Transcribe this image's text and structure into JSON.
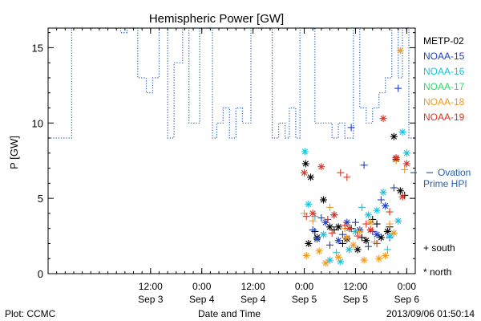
{
  "chart_data": {
    "type": "scatter",
    "title": "Hemispheric Power [GW]",
    "ylabel": "P [GW]",
    "xlabel": "Date and Time",
    "ylim": [
      0,
      16.3
    ],
    "xlim": [
      "2013-09-02 12:00",
      "2013-09-06 02:00"
    ],
    "yticks": [
      0,
      5,
      10,
      15
    ],
    "xticks": [
      {
        "t": "2013-09-03 12:00",
        "time": "12:00",
        "date": "Sep 3"
      },
      {
        "t": "2013-09-04 00:00",
        "time": "0:00",
        "date": "Sep 4"
      },
      {
        "t": "2013-09-04 12:00",
        "time": "12:00",
        "date": "Sep 4"
      },
      {
        "t": "2013-09-05 00:00",
        "time": "0:00",
        "date": "Sep 5"
      },
      {
        "t": "2013-09-05 12:00",
        "time": "12:00",
        "date": "Sep 5"
      },
      {
        "t": "2013-09-06 00:00",
        "time": "0:00",
        "date": "Sep 6"
      }
    ],
    "legend": [
      {
        "name": "METP-02",
        "color": "#000000"
      },
      {
        "name": "NOAA-15",
        "color": "#1f3fbf"
      },
      {
        "name": "NOAA-16",
        "color": "#17c3dd"
      },
      {
        "name": "NOAA-17",
        "color": "#26dd66"
      },
      {
        "name": "NOAA-18",
        "color": "#ee9a1f"
      },
      {
        "name": "NOAA-19",
        "color": "#dd3322"
      }
    ],
    "ovation": {
      "label_line1": "Ovation",
      "label_line2": "Prime HPI",
      "value": 6.7,
      "color": "#1f5fbf"
    },
    "symbols": {
      "south": "+ south",
      "north": "* north"
    },
    "step_series": {
      "color": "#1f5fbf",
      "points": [
        [
          "2013-09-02 12:00",
          9.0
        ],
        [
          "2013-09-02 17:30",
          9.0
        ],
        [
          "2013-09-02 17:30",
          16.3
        ],
        [
          "2013-09-03 05:00",
          16.3
        ],
        [
          "2013-09-03 05:00",
          16.0
        ],
        [
          "2013-09-03 06:30",
          16.0
        ],
        [
          "2013-09-03 06:30",
          16.3
        ],
        [
          "2013-09-03 09:00",
          16.3
        ],
        [
          "2013-09-03 09:00",
          13.0
        ],
        [
          "2013-09-03 11:00",
          13.0
        ],
        [
          "2013-09-03 11:00",
          12.0
        ],
        [
          "2013-09-03 12:30",
          12.0
        ],
        [
          "2013-09-03 12:30",
          13.0
        ],
        [
          "2013-09-03 14:00",
          13.0
        ],
        [
          "2013-09-03 14:00",
          16.3
        ],
        [
          "2013-09-03 16:00",
          16.3
        ],
        [
          "2013-09-03 16:00",
          9.0
        ],
        [
          "2013-09-03 17:30",
          9.0
        ],
        [
          "2013-09-03 17:30",
          14.0
        ],
        [
          "2013-09-03 19:30",
          14.0
        ],
        [
          "2013-09-03 19:30",
          16.3
        ],
        [
          "2013-09-03 21:00",
          16.3
        ],
        [
          "2013-09-03 21:00",
          10.0
        ],
        [
          "2013-09-03 23:30",
          10.0
        ],
        [
          "2013-09-03 23:30",
          16.3
        ],
        [
          "2013-09-04 02:30",
          16.3
        ],
        [
          "2013-09-04 02:30",
          9.0
        ],
        [
          "2013-09-04 03:30",
          9.0
        ],
        [
          "2013-09-04 03:30",
          10.0
        ],
        [
          "2013-09-04 05:00",
          10.0
        ],
        [
          "2013-09-04 05:00",
          11.0
        ],
        [
          "2013-09-04 06:30",
          11.0
        ],
        [
          "2013-09-04 06:30",
          9.0
        ],
        [
          "2013-09-04 08:00",
          9.0
        ],
        [
          "2013-09-04 08:00",
          11.0
        ],
        [
          "2013-09-04 09:30",
          11.0
        ],
        [
          "2013-09-04 09:30",
          10.0
        ],
        [
          "2013-09-04 11:30",
          10.0
        ],
        [
          "2013-09-04 11:30",
          16.3
        ],
        [
          "2013-09-04 16:30",
          16.3
        ],
        [
          "2013-09-04 16:30",
          9.0
        ],
        [
          "2013-09-04 18:00",
          9.0
        ],
        [
          "2013-09-04 18:00",
          10.0
        ],
        [
          "2013-09-04 19:30",
          10.0
        ],
        [
          "2013-09-04 19:30",
          9.0
        ],
        [
          "2013-09-04 20:30",
          9.0
        ],
        [
          "2013-09-04 20:30",
          11.0
        ],
        [
          "2013-09-04 22:00",
          11.0
        ],
        [
          "2013-09-04 22:00",
          9.0
        ],
        [
          "2013-09-04 23:00",
          9.0
        ],
        [
          "2013-09-04 23:00",
          16.3
        ],
        [
          "2013-09-05 02:30",
          16.3
        ],
        [
          "2013-09-05 02:30",
          10.0
        ],
        [
          "2013-09-05 06:30",
          10.0
        ],
        [
          "2013-09-05 06:30",
          9.0
        ],
        [
          "2013-09-05 08:00",
          9.0
        ],
        [
          "2013-09-05 08:00",
          10.0
        ],
        [
          "2013-09-05 09:30",
          10.0
        ],
        [
          "2013-09-05 09:30",
          9.0
        ],
        [
          "2013-09-05 11:30",
          9.0
        ],
        [
          "2013-09-05 11:30",
          16.3
        ],
        [
          "2013-09-05 13:00",
          16.3
        ],
        [
          "2013-09-05 13:00",
          11.0
        ],
        [
          "2013-09-05 14:30",
          11.0
        ],
        [
          "2013-09-05 14:30",
          10.0
        ],
        [
          "2013-09-05 16:00",
          10.0
        ],
        [
          "2013-09-05 16:00",
          11.0
        ],
        [
          "2013-09-05 17:30",
          11.0
        ],
        [
          "2013-09-05 17:30",
          12.0
        ],
        [
          "2013-09-05 19:00",
          12.0
        ],
        [
          "2013-09-05 19:00",
          13.0
        ],
        [
          "2013-09-05 20:30",
          13.0
        ],
        [
          "2013-09-05 20:30",
          16.3
        ],
        [
          "2013-09-05 22:00",
          16.3
        ],
        [
          "2013-09-05 22:00",
          13.0
        ],
        [
          "2013-09-05 23:00",
          13.0
        ],
        [
          "2013-09-05 23:00",
          16.3
        ],
        [
          "2013-09-06 00:30",
          16.3
        ],
        [
          "2013-09-06 00:30",
          9.0
        ],
        [
          "2013-09-06 02:00",
          9.0
        ]
      ]
    },
    "scatter_series": [
      {
        "name": "METP-02",
        "color": "#000000",
        "points": [
          [
            "2013-09-05 00:20",
            7.3,
            "n"
          ],
          [
            "2013-09-05 01:30",
            6.4,
            "n"
          ],
          [
            "2013-09-05 04:30",
            4.9,
            "n"
          ],
          [
            "2013-09-05 03:00",
            2.4,
            "n"
          ],
          [
            "2013-09-05 01:00",
            2.0,
            "n"
          ],
          [
            "2013-09-05 06:00",
            3.1,
            "n"
          ],
          [
            "2013-09-05 08:00",
            3.1,
            "n"
          ],
          [
            "2013-09-05 10:00",
            2.3,
            "n"
          ],
          [
            "2013-09-05 12:30",
            1.6,
            "n"
          ],
          [
            "2013-09-05 14:30",
            2.2,
            "n"
          ],
          [
            "2013-09-05 18:00",
            2.4,
            "n"
          ],
          [
            "2013-09-05 21:00",
            9.1,
            "n"
          ],
          [
            "2013-09-05 22:30",
            5.5,
            "n"
          ],
          [
            "2013-09-05 21:30",
            7.6,
            "n"
          ],
          [
            "2013-09-05 19:30",
            2.8,
            "n"
          ],
          [
            "2013-09-05 16:00",
            3.6,
            "s"
          ],
          [
            "2013-09-05 11:00",
            3.0,
            "s"
          ],
          [
            "2013-09-05 07:00",
            2.9,
            "s"
          ],
          [
            "2013-09-05 02:30",
            2.8,
            "s"
          ],
          [
            "2013-09-05 13:30",
            2.4,
            "s"
          ],
          [
            "2013-09-05 17:00",
            3.3,
            "s"
          ],
          [
            "2013-09-05 09:00",
            2.0,
            "s"
          ],
          [
            "2013-09-05 23:30",
            5.2,
            "s"
          ],
          [
            "2013-09-05 20:00",
            3.1,
            "s"
          ]
        ]
      },
      {
        "name": "NOAA-15",
        "color": "#1f3fbf",
        "points": [
          [
            "2013-09-05 11:00",
            9.7,
            "s"
          ],
          [
            "2013-09-05 14:00",
            7.2,
            "s"
          ],
          [
            "2013-09-05 18:00",
            4.9,
            "s"
          ],
          [
            "2013-09-05 22:00",
            12.3,
            "s"
          ],
          [
            "2013-09-05 21:00",
            5.7,
            "s"
          ],
          [
            "2013-09-05 07:00",
            3.9,
            "s"
          ],
          [
            "2013-09-05 04:00",
            3.7,
            "s"
          ],
          [
            "2013-09-05 12:00",
            3.4,
            "s"
          ],
          [
            "2013-09-05 16:00",
            2.8,
            "s"
          ],
          [
            "2013-09-05 09:00",
            2.6,
            "s"
          ],
          [
            "2013-09-05 02:00",
            2.9,
            "s"
          ],
          [
            "2013-09-05 20:00",
            2.4,
            "s"
          ],
          [
            "2013-09-05 06:00",
            1.9,
            "s"
          ],
          [
            "2013-09-05 15:00",
            1.8,
            "s"
          ],
          [
            "2013-09-05 05:00",
            3.4,
            "n"
          ],
          [
            "2013-09-05 10:00",
            3.4,
            "n"
          ],
          [
            "2013-09-05 13:00",
            2.9,
            "n"
          ],
          [
            "2013-09-05 19:00",
            4.5,
            "n"
          ],
          [
            "2013-09-05 17:00",
            2.6,
            "n"
          ],
          [
            "2013-09-05 08:00",
            2.2,
            "n"
          ],
          [
            "2013-09-05 03:00",
            2.3,
            "n"
          ]
        ]
      },
      {
        "name": "NOAA-16",
        "color": "#17c3dd",
        "points": [
          [
            "2013-09-05 00:10",
            8.1,
            "n"
          ],
          [
            "2013-09-06 00:00",
            8.0,
            "n"
          ],
          [
            "2013-09-05 23:00",
            9.4,
            "n"
          ],
          [
            "2013-09-05 18:30",
            5.4,
            "n"
          ],
          [
            "2013-09-05 01:00",
            4.6,
            "n"
          ],
          [
            "2013-09-05 15:00",
            3.9,
            "n"
          ],
          [
            "2013-09-05 04:30",
            2.6,
            "n"
          ],
          [
            "2013-09-05 06:00",
            0.9,
            "n"
          ],
          [
            "2013-09-05 08:30",
            0.8,
            "n"
          ],
          [
            "2013-09-05 10:30",
            1.6,
            "n"
          ],
          [
            "2013-09-05 12:00",
            2.8,
            "n"
          ],
          [
            "2013-09-05 20:00",
            2.5,
            "n"
          ],
          [
            "2013-09-05 22:00",
            3.5,
            "n"
          ],
          [
            "2013-09-05 17:00",
            4.2,
            "n"
          ],
          [
            "2013-09-05 13:30",
            4.4,
            "s"
          ],
          [
            "2013-09-05 07:30",
            1.4,
            "s"
          ],
          [
            "2013-09-05 02:30",
            3.8,
            "s"
          ],
          [
            "2013-09-05 19:30",
            1.6,
            "s"
          ]
        ]
      },
      {
        "name": "NOAA-18",
        "color": "#ee9a1f",
        "points": [
          [
            "2013-09-05 22:30",
            14.8,
            "n"
          ],
          [
            "2013-09-05 00:00",
            4.0,
            "s"
          ],
          [
            "2013-09-05 02:00",
            3.5,
            "s"
          ],
          [
            "2013-09-05 06:00",
            4.4,
            "s"
          ],
          [
            "2013-09-05 09:30",
            3.0,
            "s"
          ],
          [
            "2013-09-05 13:00",
            2.8,
            "s"
          ],
          [
            "2013-09-05 16:30",
            2.1,
            "s"
          ],
          [
            "2013-09-05 20:00",
            3.3,
            "s"
          ],
          [
            "2013-09-05 21:30",
            7.5,
            "s"
          ],
          [
            "2013-09-05 23:30",
            6.9,
            "s"
          ],
          [
            "2013-09-05 00:30",
            1.2,
            "n"
          ],
          [
            "2013-09-05 03:30",
            1.5,
            "n"
          ],
          [
            "2013-09-05 05:00",
            0.7,
            "n"
          ],
          [
            "2013-09-05 08:00",
            1.1,
            "n"
          ],
          [
            "2013-09-05 11:30",
            1.9,
            "n"
          ],
          [
            "2013-09-05 14:00",
            0.9,
            "n"
          ],
          [
            "2013-09-05 17:30",
            1.0,
            "n"
          ],
          [
            "2013-09-05 19:00",
            1.2,
            "n"
          ],
          [
            "2013-09-05 21:00",
            2.7,
            "n"
          ],
          [
            "2013-09-05 15:30",
            3.4,
            "n"
          ],
          [
            "2013-09-05 10:00",
            2.4,
            "n"
          ]
        ]
      },
      {
        "name": "NOAA-19",
        "color": "#dd3322",
        "points": [
          [
            "2013-09-05 00:00",
            6.7,
            "n"
          ],
          [
            "2013-09-05 04:00",
            7.1,
            "n"
          ],
          [
            "2013-09-05 18:30",
            10.3,
            "n"
          ],
          [
            "2013-09-05 21:30",
            7.7,
            "n"
          ],
          [
            "2013-09-06 00:00",
            7.3,
            "n"
          ],
          [
            "2013-09-05 23:00",
            5.1,
            "n"
          ],
          [
            "2013-09-05 07:00",
            3.9,
            "n"
          ],
          [
            "2013-09-05 10:30",
            3.0,
            "n"
          ],
          [
            "2013-09-05 15:30",
            2.9,
            "n"
          ],
          [
            "2013-09-05 02:00",
            4.0,
            "n"
          ],
          [
            "2013-09-05 08:30",
            6.7,
            "s"
          ],
          [
            "2013-09-05 10:00",
            6.4,
            "s"
          ],
          [
            "2013-09-05 00:30",
            3.8,
            "s"
          ],
          [
            "2013-09-05 05:30",
            3.6,
            "s"
          ],
          [
            "2013-09-05 09:30",
            3.2,
            "s"
          ],
          [
            "2013-09-05 12:30",
            2.5,
            "s"
          ],
          [
            "2013-09-05 14:30",
            3.3,
            "s"
          ],
          [
            "2013-09-05 17:00",
            2.0,
            "s"
          ],
          [
            "2013-09-05 20:00",
            4.1,
            "s"
          ],
          [
            "2013-09-05 06:30",
            2.7,
            "s"
          ]
        ]
      }
    ]
  },
  "footer": {
    "plot_credit": "Plot: CCMC",
    "timestamp": "2013/09/06 01:50:14"
  }
}
